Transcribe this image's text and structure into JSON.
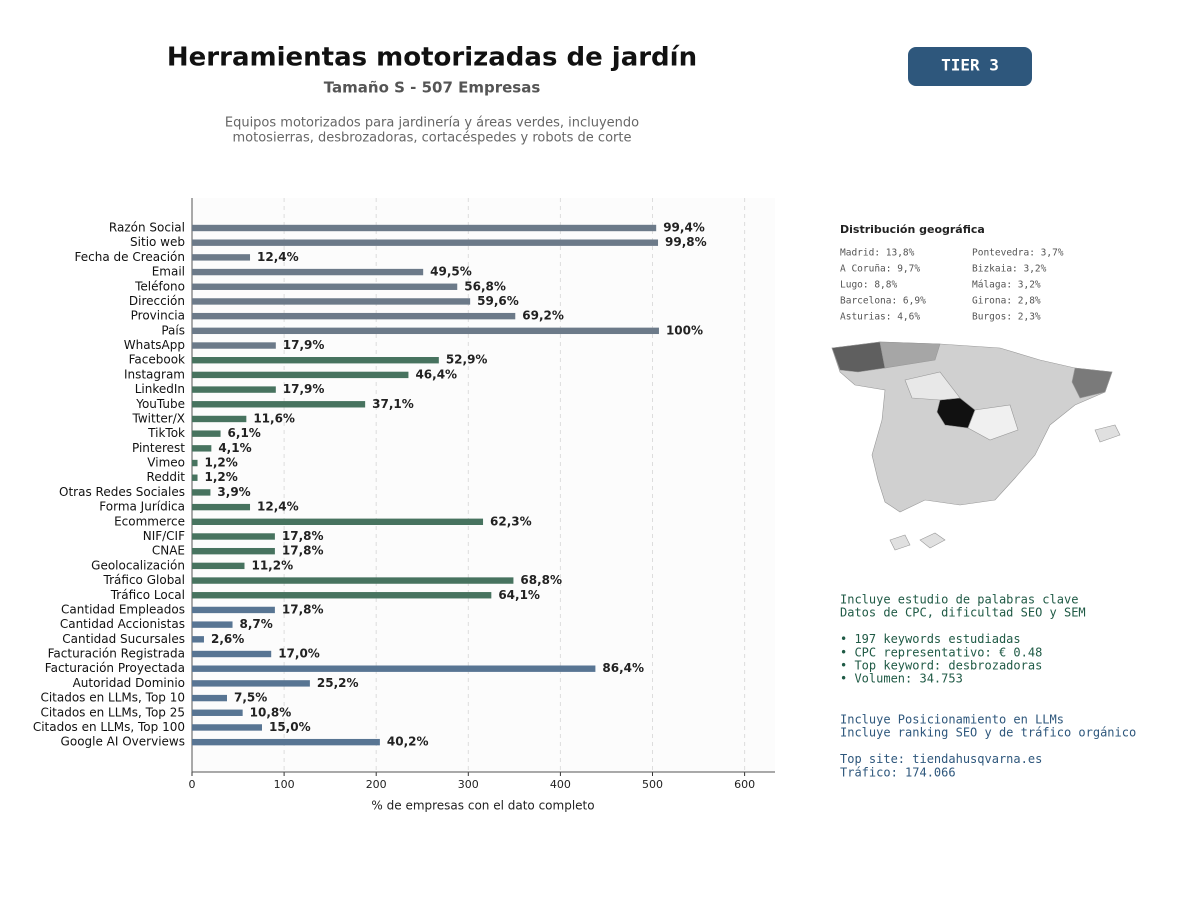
{
  "chart_data": {
    "type": "barh",
    "title": "Herramientas motorizadas de jardín",
    "subtitle": "Tamaño S - 507 Empresas",
    "description": [
      "Equipos motorizados para jardinería y áreas verdes, incluyendo",
      "motosierras, desbrozadoras, cortacéspedes y robots de corte"
    ],
    "badge": "TIER 3",
    "xlabel": "% de empresas con el dato completo",
    "categories": [
      "Razón Social",
      "Sitio web",
      "Fecha de Creación",
      "Email",
      "Teléfono",
      "Dirección",
      "Provincia",
      "País",
      "WhatsApp",
      "Facebook",
      "Instagram",
      "LinkedIn",
      "YouTube",
      "Twitter/X",
      "TikTok",
      "Pinterest",
      "Vimeo",
      "Reddit",
      "Otras Redes Sociales",
      "Forma Jurídica",
      "Ecommerce",
      "NIF/CIF",
      "CNAE",
      "Geolocalización",
      "Tráfico Global",
      "Tráfico Local",
      "Cantidad Empleados",
      "Cantidad Accionistas",
      "Cantidad Sucursales",
      "Facturación Registrada",
      "Facturación Proyectada",
      "Autoridad Dominio",
      "Citados en LLMs, Top 10",
      "Citados en LLMs, Top 25",
      "Citados en LLMs, Top 100",
      "Google AI Overviews"
    ],
    "values": [
      504,
      506,
      63,
      251,
      288,
      302,
      351,
      507,
      91,
      268,
      235,
      91,
      188,
      59,
      31,
      21,
      6,
      6,
      20,
      63,
      316,
      90,
      90,
      57,
      349,
      325,
      90,
      44,
      13,
      86,
      438,
      128,
      38,
      55,
      76,
      204
    ],
    "value_labels": [
      "99,4%",
      "99,8%",
      "12,4%",
      "49,5%",
      "56,8%",
      "59,6%",
      "69,2%",
      "100%",
      "17,9%",
      "52,9%",
      "46,4%",
      "17,9%",
      "37,1%",
      "11,6%",
      "6,1%",
      "4,1%",
      "1,2%",
      "1,2%",
      "3,9%",
      "12,4%",
      "62,3%",
      "17,8%",
      "17,8%",
      "11,2%",
      "68,8%",
      "64,1%",
      "17,8%",
      "8,7%",
      "2,6%",
      "17,0%",
      "86,4%",
      "25,2%",
      "7,5%",
      "10,8%",
      "15,0%",
      "40,2%"
    ],
    "colors": [
      "#6c7a89",
      "#6c7a89",
      "#6c7a89",
      "#6c7a89",
      "#6c7a89",
      "#6c7a89",
      "#6c7a89",
      "#6c7a89",
      "#6c7a89",
      "#47735f",
      "#47735f",
      "#47735f",
      "#47735f",
      "#47735f",
      "#47735f",
      "#47735f",
      "#47735f",
      "#47735f",
      "#47735f",
      "#47735f",
      "#47735f",
      "#47735f",
      "#47735f",
      "#47735f",
      "#47735f",
      "#47735f",
      "#587593",
      "#587593",
      "#587593",
      "#587593",
      "#587593",
      "#587593",
      "#587593",
      "#587593",
      "#587593",
      "#587593"
    ],
    "xlim": [
      0,
      633
    ],
    "xticks": [
      0,
      100,
      200,
      300,
      400,
      500,
      600
    ],
    "grid": true
  },
  "side_panel": {
    "geo_title": "Distribución geográfica",
    "geo_left": [
      "Madrid: 13,8%",
      "A Coruña: 9,7%",
      "Lugo: 8,8%",
      "Barcelona: 6,9%",
      "Asturias: 4,6%"
    ],
    "geo_right": [
      "Pontevedra: 3,7%",
      "Bizkaia: 3,2%",
      "Málaga: 3,2%",
      "Girona: 2,8%",
      "Burgos: 2,3%"
    ],
    "seo_block": [
      "Incluye estudio de palabras clave",
      "Datos de CPC, dificultad SEO y SEM",
      "",
      "• 197 keywords estudiadas",
      "• CPC representativo: € 0.48",
      "• Top keyword: desbrozadoras",
      "• Volumen: 34.753"
    ],
    "llm_block": [
      "Incluye Posicionamiento en LLMs",
      "Incluye ranking SEO y de tráfico orgánico",
      "",
      "Top site: tiendahusqvarna.es",
      "Tráfico: 174.066"
    ]
  }
}
